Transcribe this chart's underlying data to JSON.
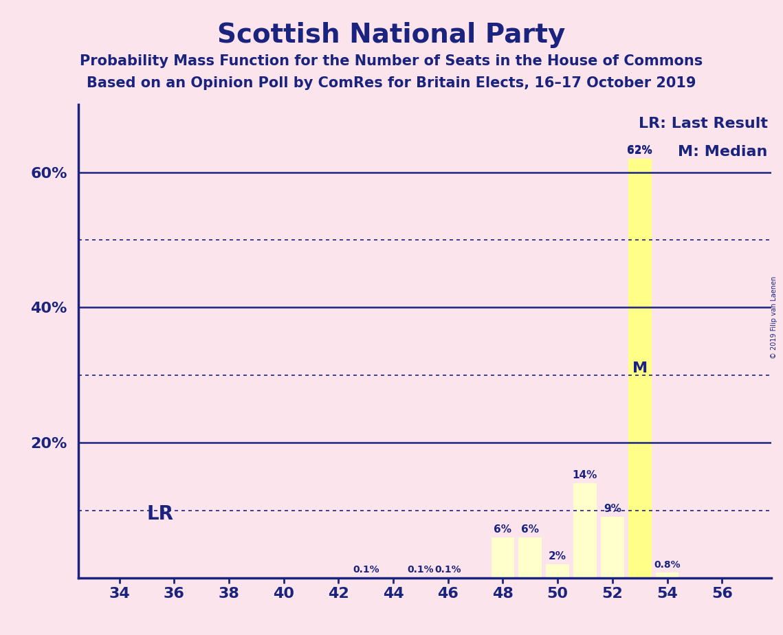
{
  "title": "Scottish National Party",
  "subtitle1": "Probability Mass Function for the Number of Seats in the House of Commons",
  "subtitle2": "Based on an Opinion Poll by ComRes for Britain Elects, 16–17 October 2019",
  "copyright": "© 2019 Filip van Laenen",
  "background_color": "#fce4ec",
  "bar_color": "#ffffcc",
  "bar_color_lr": "#ffff88",
  "text_color": "#1a237e",
  "grid_color_solid": "#1a237e",
  "grid_color_dotted": "#1a237e",
  "x_values": [
    34,
    35,
    36,
    37,
    38,
    39,
    40,
    41,
    42,
    43,
    44,
    45,
    46,
    47,
    48,
    49,
    50,
    51,
    52,
    53,
    54,
    55,
    56
  ],
  "y_values": [
    0,
    0,
    0,
    0,
    0,
    0,
    0,
    0,
    0,
    0.1,
    0,
    0.1,
    0.1,
    0,
    6,
    6,
    2,
    14,
    9,
    62,
    0.8,
    0,
    0
  ],
  "x_tick_values": [
    34,
    36,
    38,
    40,
    42,
    44,
    46,
    48,
    50,
    52,
    54,
    56
  ],
  "y_ticks_solid": [
    20,
    40,
    60
  ],
  "y_ticks_dotted": [
    10,
    30,
    50
  ],
  "ylim": [
    0,
    70
  ],
  "last_result_seat": 53,
  "median_seat": 53,
  "lr_label": "LR: Last Result",
  "m_label": "M: Median",
  "lr_text": "LR",
  "m_text": "M",
  "title_fontsize": 28,
  "subtitle_fontsize": 15,
  "tick_fontsize": 16,
  "bar_label_fontsize": 11,
  "legend_fontsize": 16,
  "lr_fontsize": 20,
  "m_fontsize": 16
}
